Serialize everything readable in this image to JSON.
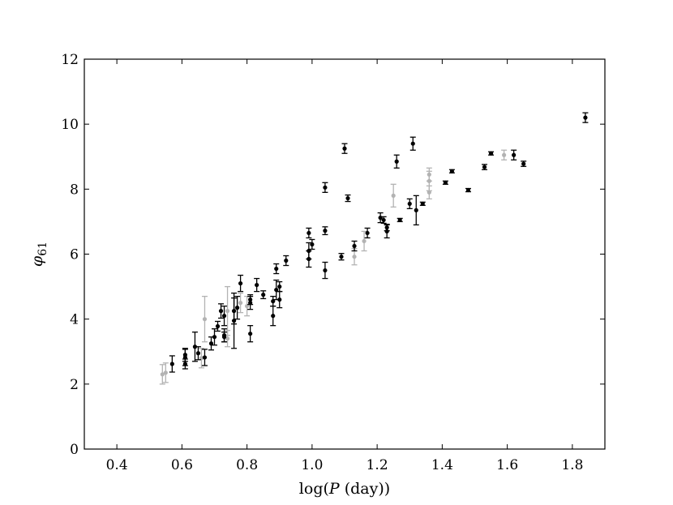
{
  "chart_data": {
    "type": "scatter",
    "xlabel_parts": {
      "pre": "log(",
      "var": "P",
      "post": " (day))"
    },
    "ylabel_parts": {
      "var": "φ",
      "sub": "61"
    },
    "xlim": [
      0.3,
      1.9
    ],
    "ylim": [
      0,
      12
    ],
    "xticks": [
      0.4,
      0.6,
      0.8,
      1.0,
      1.2,
      1.4,
      1.6,
      1.8
    ],
    "xtick_labels": [
      "0.4",
      "0.6",
      "0.8",
      "1.0",
      "1.2",
      "1.4",
      "1.6",
      "1.8"
    ],
    "yticks": [
      0,
      2,
      4,
      6,
      8,
      10,
      12
    ],
    "ytick_labels": [
      "0",
      "2",
      "4",
      "6",
      "8",
      "10",
      "12"
    ],
    "grid": false,
    "colors": {
      "primary": "#000000",
      "secondary": "#b3b3b3"
    },
    "series": [
      {
        "color": "#000000",
        "points": [
          [
            0.57,
            2.62,
            0.25
          ],
          [
            0.61,
            2.82,
            0.25
          ],
          [
            0.61,
            2.62,
            0.15
          ],
          [
            0.61,
            2.9,
            0.2
          ],
          [
            0.64,
            3.15,
            0.45
          ],
          [
            0.65,
            2.95,
            0.2
          ],
          [
            0.67,
            2.82,
            0.25
          ],
          [
            0.69,
            3.25,
            0.2
          ],
          [
            0.7,
            3.45,
            0.25
          ],
          [
            0.71,
            3.78,
            0.15
          ],
          [
            0.72,
            4.25,
            0.22
          ],
          [
            0.73,
            4.1,
            0.3
          ],
          [
            0.73,
            3.5,
            0.2
          ],
          [
            0.73,
            3.45,
            0.15
          ],
          [
            0.76,
            3.95,
            0.85
          ],
          [
            0.76,
            4.25,
            0.4
          ],
          [
            0.77,
            4.35,
            0.35
          ],
          [
            0.78,
            5.1,
            0.25
          ],
          [
            0.81,
            4.5,
            0.2
          ],
          [
            0.81,
            3.55,
            0.25
          ],
          [
            0.81,
            4.6,
            0.15
          ],
          [
            0.83,
            5.05,
            0.2
          ],
          [
            0.85,
            4.75,
            0.12
          ],
          [
            0.88,
            4.1,
            0.3
          ],
          [
            0.88,
            4.55,
            0.15
          ],
          [
            0.89,
            5.55,
            0.15
          ],
          [
            0.89,
            4.9,
            0.3
          ],
          [
            0.9,
            4.6,
            0.25
          ],
          [
            0.9,
            5.0,
            0.15
          ],
          [
            0.92,
            5.8,
            0.15
          ],
          [
            0.99,
            6.65,
            0.15
          ],
          [
            0.99,
            6.1,
            0.25
          ],
          [
            0.99,
            5.85,
            0.25
          ],
          [
            1.0,
            6.3,
            0.15
          ],
          [
            1.04,
            8.05,
            0.15
          ],
          [
            1.04,
            6.72,
            0.12
          ],
          [
            1.04,
            5.5,
            0.25
          ],
          [
            1.09,
            5.92,
            0.1
          ],
          [
            1.1,
            9.25,
            0.15
          ],
          [
            1.11,
            7.72,
            0.1
          ],
          [
            1.13,
            6.25,
            0.15
          ],
          [
            1.17,
            6.65,
            0.15
          ],
          [
            1.21,
            7.12,
            0.15
          ],
          [
            1.22,
            7.05,
            0.1
          ],
          [
            1.23,
            6.82,
            0.1
          ],
          [
            1.23,
            6.7,
            0.2
          ],
          [
            1.26,
            8.85,
            0.2
          ],
          [
            1.27,
            7.05,
            0.05
          ],
          [
            1.3,
            7.55,
            0.15
          ],
          [
            1.31,
            9.4,
            0.2
          ],
          [
            1.32,
            7.35,
            0.45
          ],
          [
            1.34,
            7.55,
            0.05
          ],
          [
            1.41,
            8.2,
            0.05
          ],
          [
            1.43,
            8.55,
            0.05
          ],
          [
            1.48,
            7.97,
            0.05
          ],
          [
            1.53,
            8.68,
            0.08
          ],
          [
            1.55,
            9.1,
            0.05
          ],
          [
            1.62,
            9.05,
            0.15
          ],
          [
            1.65,
            8.78,
            0.08
          ],
          [
            1.84,
            10.2,
            0.15
          ]
        ]
      },
      {
        "color": "#b3b3b3",
        "points": [
          [
            0.54,
            2.3,
            0.3
          ],
          [
            0.55,
            2.35,
            0.3
          ],
          [
            0.66,
            2.8,
            0.3
          ],
          [
            0.67,
            4.0,
            0.7
          ],
          [
            0.74,
            3.4,
            0.25
          ],
          [
            0.74,
            4.25,
            0.75
          ],
          [
            0.78,
            4.5,
            0.3
          ],
          [
            0.8,
            4.4,
            0.3
          ],
          [
            1.13,
            5.92,
            0.25
          ],
          [
            1.16,
            6.4,
            0.3
          ],
          [
            1.25,
            7.8,
            0.35
          ],
          [
            1.36,
            8.45,
            0.2
          ],
          [
            1.36,
            8.25,
            0.3
          ],
          [
            1.36,
            7.9,
            0.2
          ],
          [
            1.59,
            9.05,
            0.15
          ]
        ]
      }
    ]
  }
}
